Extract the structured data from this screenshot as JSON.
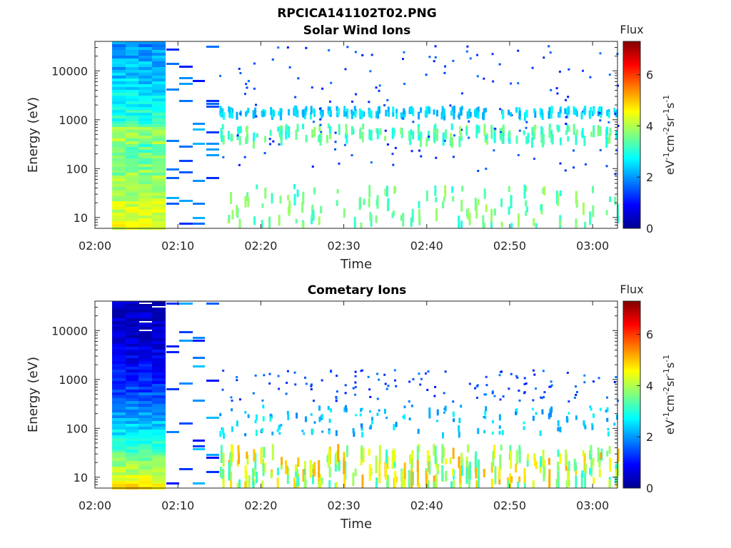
{
  "figure_title": "RPCICA141102T02.PNG",
  "chart_data": [
    {
      "type": "heatmap",
      "title": "Solar Wind Ions",
      "xlabel": "Time",
      "ylabel": "Energy (eV)",
      "x_ticks": [
        "02:00",
        "02:10",
        "02:20",
        "02:30",
        "02:40",
        "02:50",
        "03:00"
      ],
      "y_scale": "log",
      "y_ticks": [
        "10",
        "100",
        "1000",
        "10000"
      ],
      "ylim": [
        6,
        40000
      ],
      "colorbar": {
        "title": "Flux",
        "label_parts": [
          "eV",
          "-1",
          "cm",
          "-2",
          "sr",
          "-1",
          "s",
          "-1"
        ],
        "ticks": [
          "0",
          "2",
          "4",
          "6"
        ],
        "range": [
          0,
          7.3
        ],
        "colormap": "jet"
      }
    },
    {
      "type": "heatmap",
      "title": "Cometary Ions",
      "xlabel": "Time",
      "ylabel": "Energy (eV)",
      "x_ticks": [
        "02:00",
        "02:10",
        "02:20",
        "02:30",
        "02:40",
        "02:50",
        "03:00"
      ],
      "y_scale": "log",
      "y_ticks": [
        "10",
        "100",
        "1000",
        "10000"
      ],
      "ylim": [
        6,
        40000
      ],
      "colorbar": {
        "title": "Flux",
        "label_parts": [
          "eV",
          "-1",
          "cm",
          "-2",
          "sr",
          "-1",
          "s",
          "-1"
        ],
        "ticks": [
          "0",
          "2",
          "4",
          "6"
        ],
        "range": [
          0,
          7.3
        ],
        "colormap": "jet"
      }
    }
  ]
}
